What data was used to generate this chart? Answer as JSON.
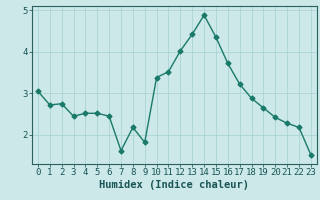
{
  "x": [
    0,
    1,
    2,
    3,
    4,
    5,
    6,
    7,
    8,
    9,
    10,
    11,
    12,
    13,
    14,
    15,
    16,
    17,
    18,
    19,
    20,
    21,
    22,
    23
  ],
  "y": [
    3.05,
    2.72,
    2.75,
    2.45,
    2.52,
    2.52,
    2.45,
    1.62,
    2.18,
    1.82,
    3.38,
    3.52,
    4.02,
    4.42,
    4.88,
    4.35,
    3.72,
    3.22,
    2.88,
    2.65,
    2.42,
    2.28,
    2.18,
    1.52
  ],
  "line_color": "#1a7a6a",
  "marker": "D",
  "marker_size": 2.5,
  "bg_color": "#cce8e8",
  "grid_color": "#aad4d4",
  "xlabel": "Humidex (Indice chaleur)",
  "ylim": [
    1.3,
    5.1
  ],
  "yticks": [
    2,
    3,
    4,
    5
  ],
  "xticks": [
    0,
    1,
    2,
    3,
    4,
    5,
    6,
    7,
    8,
    9,
    10,
    11,
    12,
    13,
    14,
    15,
    16,
    17,
    18,
    19,
    20,
    21,
    22,
    23
  ],
  "xlabel_fontsize": 7.5,
  "tick_fontsize": 6.5,
  "line_width": 1.0
}
